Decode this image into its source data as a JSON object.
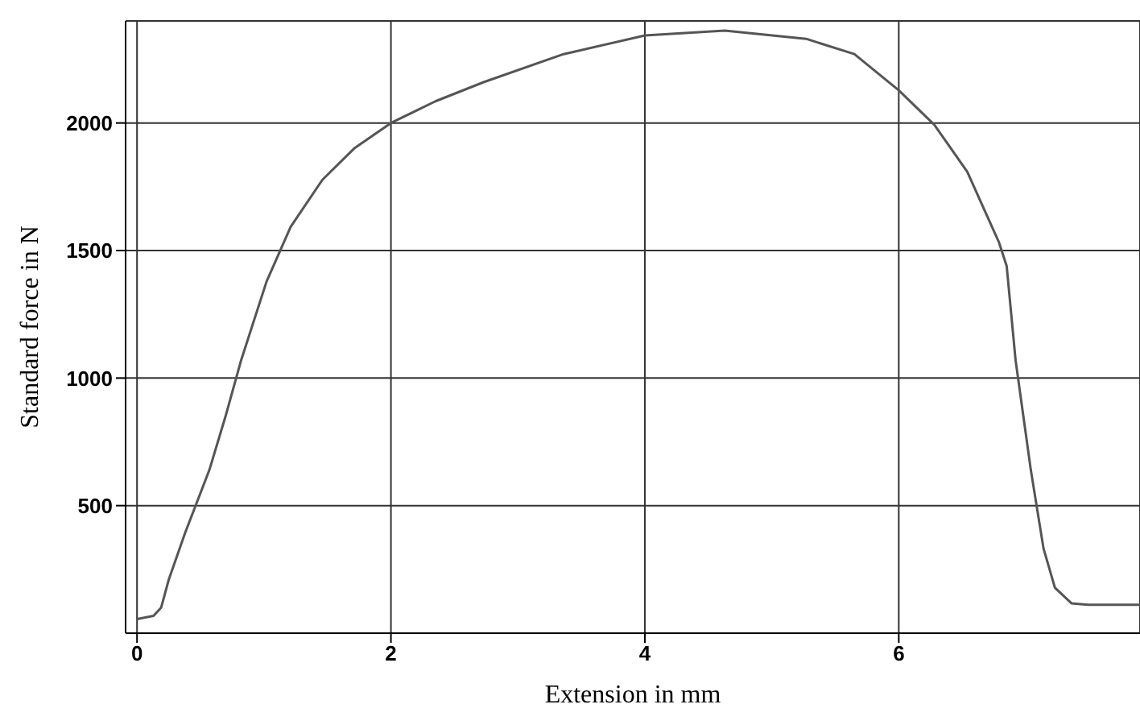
{
  "chart_data": {
    "type": "line",
    "xlabel": "Extension in mm",
    "ylabel": "Standard force in N",
    "xlim": [
      -0.09,
      7.9
    ],
    "ylim": [
      0,
      2400
    ],
    "xticks": [
      0,
      2,
      4,
      6
    ],
    "yticks": [
      500,
      1000,
      1500,
      2000
    ],
    "grid": true,
    "marker": "none",
    "line_style": "solid",
    "series": [
      {
        "color": "#555555",
        "x": [
          0,
          0.13,
          0.19,
          0.25,
          0.38,
          0.57,
          0.7,
          0.82,
          1.02,
          1.21,
          1.46,
          1.71,
          2.0,
          2.35,
          2.73,
          3.36,
          4.0,
          4.63,
          5.27,
          5.65,
          6.0,
          6.28,
          6.54,
          6.79,
          6.85,
          6.92,
          7.04,
          7.14,
          7.23,
          7.36,
          7.49,
          7.9
        ],
        "values": [
          55,
          68,
          100,
          210,
          395,
          640,
          855,
          1070,
          1378,
          1593,
          1777,
          1900,
          2000,
          2085,
          2160,
          2270,
          2343,
          2362,
          2330,
          2270,
          2128,
          1993,
          1808,
          1531,
          1439,
          1070,
          640,
          332,
          178,
          117,
          111,
          111
        ]
      }
    ]
  }
}
